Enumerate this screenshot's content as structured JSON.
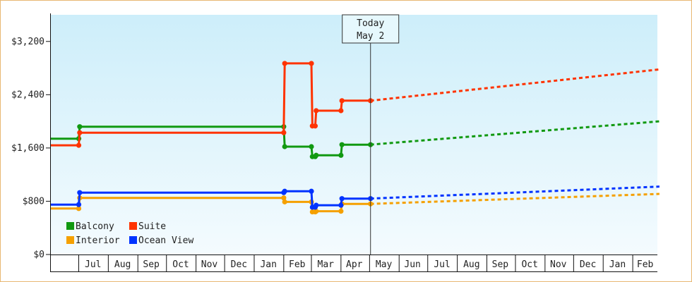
{
  "chart_data": {
    "type": "line",
    "title": "",
    "ylim": [
      0,
      3600
    ],
    "y_ticks": [
      0,
      800,
      1600,
      2400,
      3200
    ],
    "y_tick_labels": [
      "$0",
      "$800",
      "$1,600",
      "$2,400",
      "$3,200"
    ],
    "x_range": [
      "2019-06-01",
      "2020-03-01"
    ],
    "month_labels": [
      {
        "label": "Jul",
        "date": "2019-07-16"
      },
      {
        "label": "Aug",
        "date": "2019-08-16"
      },
      {
        "label": "Sep",
        "date": "2019-09-15"
      },
      {
        "label": "Oct",
        "date": "2019-10-16"
      },
      {
        "label": "Nov",
        "date": "2019-11-15"
      },
      {
        "label": "Dec",
        "date": "2019-12-16"
      },
      {
        "label": "Jan",
        "date": "2020-01-16"
      },
      {
        "label": "Feb",
        "date": "2020-02-15"
      },
      {
        "label": "Mar",
        "date": "2020-03-16"
      },
      {
        "label": "Apr",
        "date": "2020-04-15"
      },
      {
        "label": "May",
        "date": "2020-05-16"
      },
      {
        "label": "Jun",
        "date": "2020-06-15"
      },
      {
        "label": "Jul",
        "date": "2020-07-16"
      },
      {
        "label": "Aug",
        "date": "2020-08-16"
      },
      {
        "label": "Sep",
        "date": "2020-09-15"
      },
      {
        "label": "Oct",
        "date": "2020-10-16"
      },
      {
        "label": "Nov",
        "date": "2020-11-15"
      },
      {
        "label": "Dec",
        "date": "2020-12-16"
      },
      {
        "label": "Jan",
        "date": "2021-01-16"
      },
      {
        "label": "Feb",
        "date": "2021-02-14"
      }
    ],
    "today": {
      "line1": "Today",
      "line2": "May 2",
      "date": "2020-05-02"
    },
    "grid": false,
    "legend_position": "bottom-left",
    "series": [
      {
        "name": "Balcony",
        "color": "#119911",
        "history": [
          [
            "2019-06-01",
            1740
          ],
          [
            "2019-07-01",
            1740
          ],
          [
            "2019-07-02",
            1920
          ],
          [
            "2020-02-01",
            1920
          ],
          [
            "2020-02-02",
            1620
          ],
          [
            "2020-03-01",
            1620
          ],
          [
            "2020-03-02",
            1470
          ],
          [
            "2020-03-05",
            1470
          ],
          [
            "2020-03-06",
            1490
          ],
          [
            "2020-04-01",
            1490
          ],
          [
            "2020-04-02",
            1650
          ],
          [
            "2020-05-02",
            1650
          ]
        ],
        "forecast": [
          [
            "2020-05-02",
            1650
          ],
          [
            "2021-03-01",
            2000
          ]
        ]
      },
      {
        "name": "Suite",
        "color": "#ff3300",
        "history": [
          [
            "2019-06-01",
            1640
          ],
          [
            "2019-07-01",
            1640
          ],
          [
            "2019-07-02",
            1830
          ],
          [
            "2020-02-01",
            1830
          ],
          [
            "2020-02-02",
            2870
          ],
          [
            "2020-03-01",
            2870
          ],
          [
            "2020-03-02",
            1930
          ],
          [
            "2020-03-05",
            1930
          ],
          [
            "2020-03-06",
            2160
          ],
          [
            "2020-04-01",
            2160
          ],
          [
            "2020-04-02",
            2310
          ],
          [
            "2020-05-02",
            2310
          ]
        ],
        "forecast": [
          [
            "2020-05-02",
            2310
          ],
          [
            "2021-03-01",
            2780
          ]
        ]
      },
      {
        "name": "Interior",
        "color": "#f5a000",
        "history": [
          [
            "2019-06-01",
            690
          ],
          [
            "2019-07-01",
            690
          ],
          [
            "2019-07-02",
            850
          ],
          [
            "2020-02-01",
            850
          ],
          [
            "2020-02-02",
            790
          ],
          [
            "2020-03-01",
            790
          ],
          [
            "2020-03-02",
            640
          ],
          [
            "2020-03-05",
            640
          ],
          [
            "2020-03-06",
            650
          ],
          [
            "2020-04-01",
            650
          ],
          [
            "2020-04-02",
            760
          ],
          [
            "2020-05-02",
            760
          ]
        ],
        "forecast": [
          [
            "2020-05-02",
            760
          ],
          [
            "2021-03-01",
            910
          ]
        ]
      },
      {
        "name": "Ocean View",
        "color": "#0033ff",
        "history": [
          [
            "2019-06-01",
            750
          ],
          [
            "2019-07-01",
            750
          ],
          [
            "2019-07-02",
            930
          ],
          [
            "2020-02-01",
            930
          ],
          [
            "2020-02-02",
            950
          ],
          [
            "2020-03-01",
            950
          ],
          [
            "2020-03-02",
            710
          ],
          [
            "2020-03-05",
            710
          ],
          [
            "2020-03-06",
            740
          ],
          [
            "2020-04-01",
            740
          ],
          [
            "2020-04-02",
            840
          ],
          [
            "2020-05-02",
            840
          ]
        ],
        "forecast": [
          [
            "2020-05-02",
            840
          ],
          [
            "2021-03-01",
            1020
          ]
        ]
      }
    ],
    "colors": {
      "frame": "#e8b872",
      "plot_top": "#cdeefa",
      "plot_bottom": "#f4fbfe"
    }
  }
}
